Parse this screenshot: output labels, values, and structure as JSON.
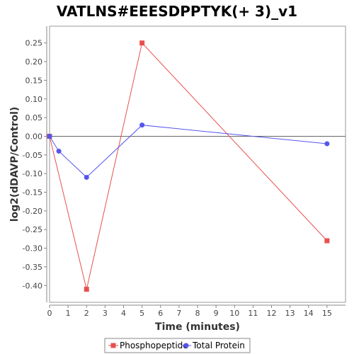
{
  "chart_data": {
    "type": "line",
    "title": "VATLNS#EEESDPPTYK(+ 3)_v1",
    "xlabel": "Time (minutes)",
    "ylabel": "log2(dDAVP/Control)",
    "xlim": [
      0,
      16
    ],
    "ylim": [
      -0.445,
      0.295
    ],
    "x_ticks": [
      0,
      1,
      2,
      3,
      4,
      5,
      6,
      7,
      8,
      9,
      10,
      11,
      12,
      13,
      14,
      15
    ],
    "y_ticks": [
      0.25,
      0.2,
      0.15,
      0.1,
      0.05,
      0.0,
      -0.05,
      -0.1,
      -0.15,
      -0.2,
      -0.25,
      -0.3,
      -0.35,
      -0.4
    ],
    "y_tick_labels": [
      "0.25",
      "0.20",
      "0.15",
      "0.10",
      "0.05",
      "0.00",
      "-0.05",
      "-0.10",
      "-0.15",
      "-0.20",
      "-0.25",
      "-0.30",
      "-0.35",
      "-0.40"
    ],
    "zero_line": true,
    "grid": false,
    "legend_position": "bottom",
    "series": [
      {
        "name": "Phosphopeptide",
        "color": "#e8504f",
        "marker": "square",
        "x": [
          0,
          2,
          5,
          15
        ],
        "y": [
          0.0,
          -0.41,
          0.25,
          -0.28
        ]
      },
      {
        "name": "Total Protein",
        "color": "#5555ee",
        "marker": "circle",
        "x": [
          0,
          0.5,
          2,
          5,
          15
        ],
        "y": [
          0.0,
          -0.04,
          -0.11,
          0.03,
          -0.02
        ]
      }
    ]
  }
}
